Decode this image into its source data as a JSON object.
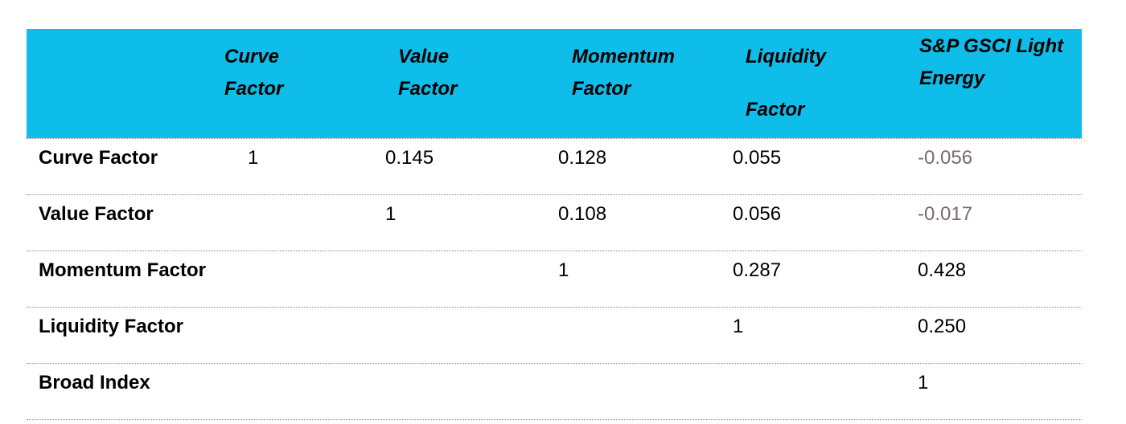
{
  "table": {
    "headers": [
      {
        "line1": "Curve",
        "line2": "Factor"
      },
      {
        "line1": "Value",
        "line2": "Factor"
      },
      {
        "line1": "Momentum",
        "line2": "Factor"
      },
      {
        "line1": "Liquidity",
        "line2": "Factor"
      },
      {
        "line1": "S&P GSCI Light",
        "line2": "Energy"
      }
    ],
    "rows": [
      {
        "label": "Curve Factor",
        "values": [
          "1",
          "0.145",
          "0.128",
          "0.055",
          "-0.056"
        ]
      },
      {
        "label": "Value Factor",
        "values": [
          "",
          "1",
          "0.108",
          "0.056",
          "-0.017"
        ]
      },
      {
        "label": "Momentum Factor",
        "values": [
          "",
          "",
          "1",
          "0.287",
          "0.428"
        ]
      },
      {
        "label": "Liquidity Factor",
        "values": [
          "",
          "",
          "",
          "1",
          "0.250"
        ]
      },
      {
        "label": "Broad Index",
        "values": [
          "",
          "",
          "",
          "",
          "1"
        ]
      }
    ]
  }
}
